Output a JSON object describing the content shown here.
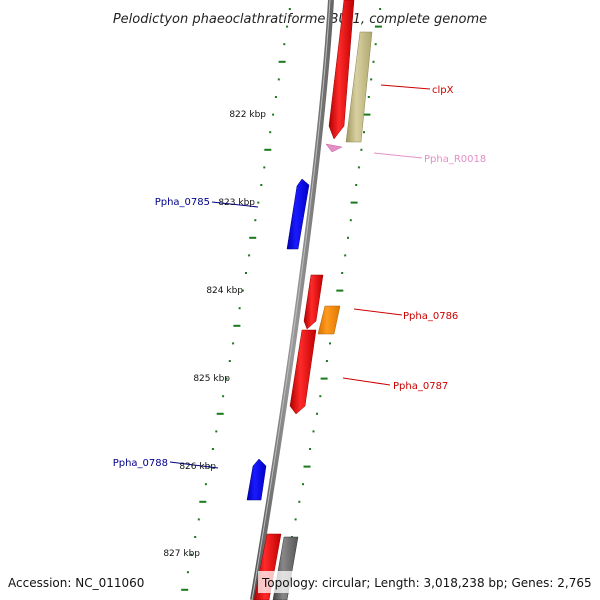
{
  "title": "Pelodictyon phaeoclathratiforme BU-1, complete genome",
  "accession": "Accession: NC_011060",
  "topology": "Topology: circular; Length: 3,018,238 bp; Genes: 2,765",
  "ticks": [
    {
      "label": "822 kbp"
    },
    {
      "label": "823 kbp"
    },
    {
      "label": "824 kbp"
    },
    {
      "label": "825 kbp"
    },
    {
      "label": "826 kbp"
    },
    {
      "label": "827 kbp"
    }
  ],
  "genes": [
    {
      "name": "clpX",
      "color": "#cc0000"
    },
    {
      "name": "Ppha_R0018",
      "color": "#e58fc8"
    },
    {
      "name": "Ppha_0785",
      "color": "#00008b"
    },
    {
      "name": "Ppha_0786",
      "color": "#cc0000"
    },
    {
      "name": "Ppha_0787",
      "color": "#cc0000"
    },
    {
      "name": "Ppha_0788",
      "color": "#00008b"
    }
  ],
  "colors": {
    "forward_cds": "#ff0000",
    "reverse_cds": "#0000ff",
    "trna": "#e58fc8",
    "misc": "#ff8c00",
    "olive": "#c8c088",
    "gray": "#666666",
    "ruler": "#1a7a1a"
  }
}
